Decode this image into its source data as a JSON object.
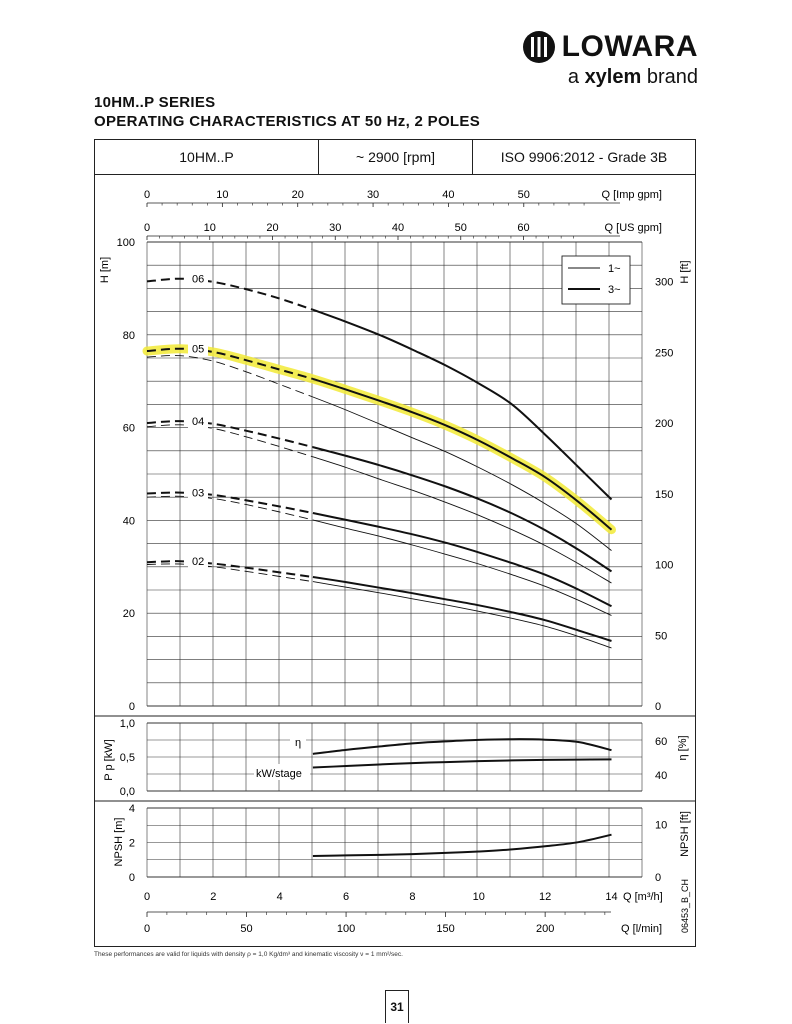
{
  "brand": {
    "name": "LOWARA",
    "tagline_pre": "a ",
    "tagline_brand": "xylem",
    "tagline_post": " brand"
  },
  "header": {
    "line1": "10HM..P SERIES",
    "line2": "OPERATING CHARACTERISTICS AT 50 Hz, 2 POLES"
  },
  "table_header": {
    "model": "10HM..P",
    "speed": "~ 2900 [rpm]",
    "standard": "ISO 9906:2012 - Grade 3B"
  },
  "footnote": "These performances are valid for liquids with density ρ = 1,0 Kg/dm³ and kinematic viscosity ν = 1 mm²/sec.",
  "page_number": "31",
  "drawing_code": "06453_B_CH",
  "chart_data": {
    "type": "line",
    "highlight_color": "#f2ea36",
    "q_axes": {
      "imp_gpm": {
        "label": "Q [Imp gpm]",
        "ticks": [
          "0",
          "10",
          "20",
          "30",
          "40",
          "50"
        ]
      },
      "us_gpm": {
        "label": "Q [US gpm]",
        "ticks": [
          "0",
          "10",
          "20",
          "30",
          "40",
          "50",
          "60"
        ]
      },
      "m3h": {
        "label": "Q [m³/h]",
        "ticks": [
          "0",
          "2",
          "4",
          "6",
          "8",
          "10",
          "12",
          "14"
        ],
        "range": [
          0,
          14
        ]
      },
      "lmin": {
        "label": "Q [l/min]",
        "ticks": [
          "0",
          "50",
          "100",
          "150",
          "200"
        ]
      }
    },
    "head": {
      "ylabel": "H [m]",
      "ylabel_right": "H [ft]",
      "ylim": [
        0,
        100
      ],
      "yticks": [
        "0",
        "20",
        "40",
        "60",
        "80",
        "100"
      ],
      "yticks_right": [
        "0",
        "50",
        "100",
        "150",
        "200",
        "250",
        "300"
      ],
      "legend": [
        {
          "label": "1~",
          "style": "thin"
        },
        {
          "label": "3~",
          "style": "thick"
        }
      ],
      "series": [
        {
          "name": "06",
          "phase": "3~",
          "points": [
            [
              0,
              91.5
            ],
            [
              1,
              92.1
            ],
            [
              2,
              91.4
            ],
            [
              3,
              89.8
            ],
            [
              4,
              87.8
            ],
            [
              5,
              85.4
            ],
            [
              6,
              82.8
            ],
            [
              7,
              80
            ],
            [
              8,
              76.8
            ],
            [
              9,
              73.4
            ],
            [
              10,
              69.5
            ],
            [
              11,
              65
            ],
            [
              12,
              58.5
            ],
            [
              13,
              51.5
            ],
            [
              14,
              44.5
            ]
          ]
        },
        {
          "name": "05",
          "phase": "3~",
          "highlighted": true,
          "points": [
            [
              0,
              76.5
            ],
            [
              1,
              77
            ],
            [
              2,
              76.3
            ],
            [
              3,
              74.5
            ],
            [
              4,
              72.5
            ],
            [
              5,
              70.5
            ],
            [
              6,
              68.2
            ],
            [
              7,
              65.8
            ],
            [
              8,
              63.3
            ],
            [
              9,
              60.5
            ],
            [
              10,
              57.2
            ],
            [
              11,
              53.4
            ],
            [
              12,
              49.3
            ],
            [
              13,
              44
            ],
            [
              14,
              38
            ]
          ]
        },
        {
          "name": "05",
          "phase": "1~",
          "points": [
            [
              0,
              75.2
            ],
            [
              1,
              75.5
            ],
            [
              2,
              74.3
            ],
            [
              3,
              72
            ],
            [
              4,
              69.3
            ],
            [
              5,
              66.6
            ],
            [
              6,
              63.8
            ],
            [
              7,
              60.8
            ],
            [
              8,
              57.8
            ],
            [
              9,
              54.8
            ],
            [
              10,
              51.4
            ],
            [
              11,
              47.7
            ],
            [
              12,
              43.6
            ],
            [
              13,
              39
            ],
            [
              14,
              33.5
            ]
          ]
        },
        {
          "name": "04",
          "phase": "3~",
          "points": [
            [
              0,
              61
            ],
            [
              1,
              61.4
            ],
            [
              2,
              60.8
            ],
            [
              3,
              59.3
            ],
            [
              4,
              57.6
            ],
            [
              5,
              55.8
            ],
            [
              6,
              53.9
            ],
            [
              7,
              51.9
            ],
            [
              8,
              49.7
            ],
            [
              9,
              47.3
            ],
            [
              10,
              44.6
            ],
            [
              11,
              41.5
            ],
            [
              12,
              37.9
            ],
            [
              13,
              33.7
            ],
            [
              14,
              29
            ]
          ]
        },
        {
          "name": "04",
          "phase": "1~",
          "points": [
            [
              0,
              60.2
            ],
            [
              1,
              60.6
            ],
            [
              2,
              59.8
            ],
            [
              3,
              58
            ],
            [
              4,
              55.9
            ],
            [
              5,
              53.7
            ],
            [
              6,
              51.4
            ],
            [
              7,
              48.9
            ],
            [
              8,
              46.5
            ],
            [
              9,
              43.9
            ],
            [
              10,
              41.1
            ],
            [
              11,
              38
            ],
            [
              12,
              34.6
            ],
            [
              13,
              30.7
            ],
            [
              14,
              26.5
            ]
          ]
        },
        {
          "name": "03",
          "phase": "3~",
          "points": [
            [
              0,
              45.8
            ],
            [
              1,
              46
            ],
            [
              2,
              45.5
            ],
            [
              3,
              44.3
            ],
            [
              4,
              43
            ],
            [
              5,
              41.6
            ],
            [
              6,
              40.1
            ],
            [
              7,
              38.6
            ],
            [
              8,
              37
            ],
            [
              9,
              35.2
            ],
            [
              10,
              33.1
            ],
            [
              11,
              30.8
            ],
            [
              12,
              28.3
            ],
            [
              13,
              25.1
            ],
            [
              14,
              21.5
            ]
          ]
        },
        {
          "name": "03",
          "phase": "1~",
          "points": [
            [
              0,
              45
            ],
            [
              1,
              45.2
            ],
            [
              2,
              44.7
            ],
            [
              3,
              43.4
            ],
            [
              4,
              41.8
            ],
            [
              5,
              40.1
            ],
            [
              6,
              38.3
            ],
            [
              7,
              36.6
            ],
            [
              8,
              34.7
            ],
            [
              9,
              32.7
            ],
            [
              10,
              30.6
            ],
            [
              11,
              28.3
            ],
            [
              12,
              25.8
            ],
            [
              13,
              22.8
            ],
            [
              14,
              19.5
            ]
          ]
        },
        {
          "name": "02",
          "phase": "3~",
          "points": [
            [
              0,
              31
            ],
            [
              1,
              31.2
            ],
            [
              2,
              30.7
            ],
            [
              3,
              29.8
            ],
            [
              4,
              28.8
            ],
            [
              5,
              27.8
            ],
            [
              6,
              26.7
            ],
            [
              7,
              25.5
            ],
            [
              8,
              24.3
            ],
            [
              9,
              23
            ],
            [
              10,
              21.7
            ],
            [
              11,
              20.2
            ],
            [
              12,
              18.5
            ],
            [
              13,
              16.3
            ],
            [
              14,
              14
            ]
          ]
        },
        {
          "name": "02",
          "phase": "1~",
          "points": [
            [
              0,
              30.5
            ],
            [
              1,
              30.6
            ],
            [
              2,
              30
            ],
            [
              3,
              29
            ],
            [
              4,
              27.9
            ],
            [
              5,
              26.8
            ],
            [
              6,
              25.6
            ],
            [
              7,
              24.4
            ],
            [
              8,
              23.1
            ],
            [
              9,
              21.8
            ],
            [
              10,
              20.4
            ],
            [
              11,
              18.9
            ],
            [
              12,
              17.2
            ],
            [
              13,
              15
            ],
            [
              14,
              12.5
            ]
          ]
        }
      ]
    },
    "power": {
      "ylabel": "P p [kW]",
      "ylabel_right": "η [%]",
      "ylim": [
        0,
        1
      ],
      "yticks": [
        "0,0",
        "0,5",
        "1,0"
      ],
      "yticks_right": [
        "40",
        "60"
      ],
      "efficiency_label": "η",
      "power_label": "kW/stage",
      "efficiency": [
        [
          5,
          0.545
        ],
        [
          6,
          0.605
        ],
        [
          7,
          0.655
        ],
        [
          8,
          0.7
        ],
        [
          9,
          0.73
        ],
        [
          10,
          0.752
        ],
        [
          11,
          0.762
        ],
        [
          12,
          0.755
        ],
        [
          13,
          0.72
        ],
        [
          14,
          0.6
        ]
      ],
      "power_per_stage": [
        [
          5,
          0.345
        ],
        [
          6,
          0.368
        ],
        [
          7,
          0.39
        ],
        [
          8,
          0.41
        ],
        [
          9,
          0.425
        ],
        [
          10,
          0.44
        ],
        [
          11,
          0.45
        ],
        [
          12,
          0.458
        ],
        [
          13,
          0.462
        ],
        [
          14,
          0.465
        ]
      ]
    },
    "npsh": {
      "ylabel": "NPSH [m]",
      "ylabel_right": "NPSH [ft]",
      "ylim": [
        0,
        4
      ],
      "yticks": [
        "0",
        "2",
        "4"
      ],
      "yticks_right": [
        "0",
        "10"
      ],
      "series": [
        [
          5,
          1.22
        ],
        [
          6,
          1.25
        ],
        [
          7,
          1.28
        ],
        [
          8,
          1.33
        ],
        [
          9,
          1.4
        ],
        [
          10,
          1.48
        ],
        [
          11,
          1.6
        ],
        [
          12,
          1.78
        ],
        [
          13,
          2.02
        ],
        [
          14,
          2.45
        ]
      ]
    }
  }
}
